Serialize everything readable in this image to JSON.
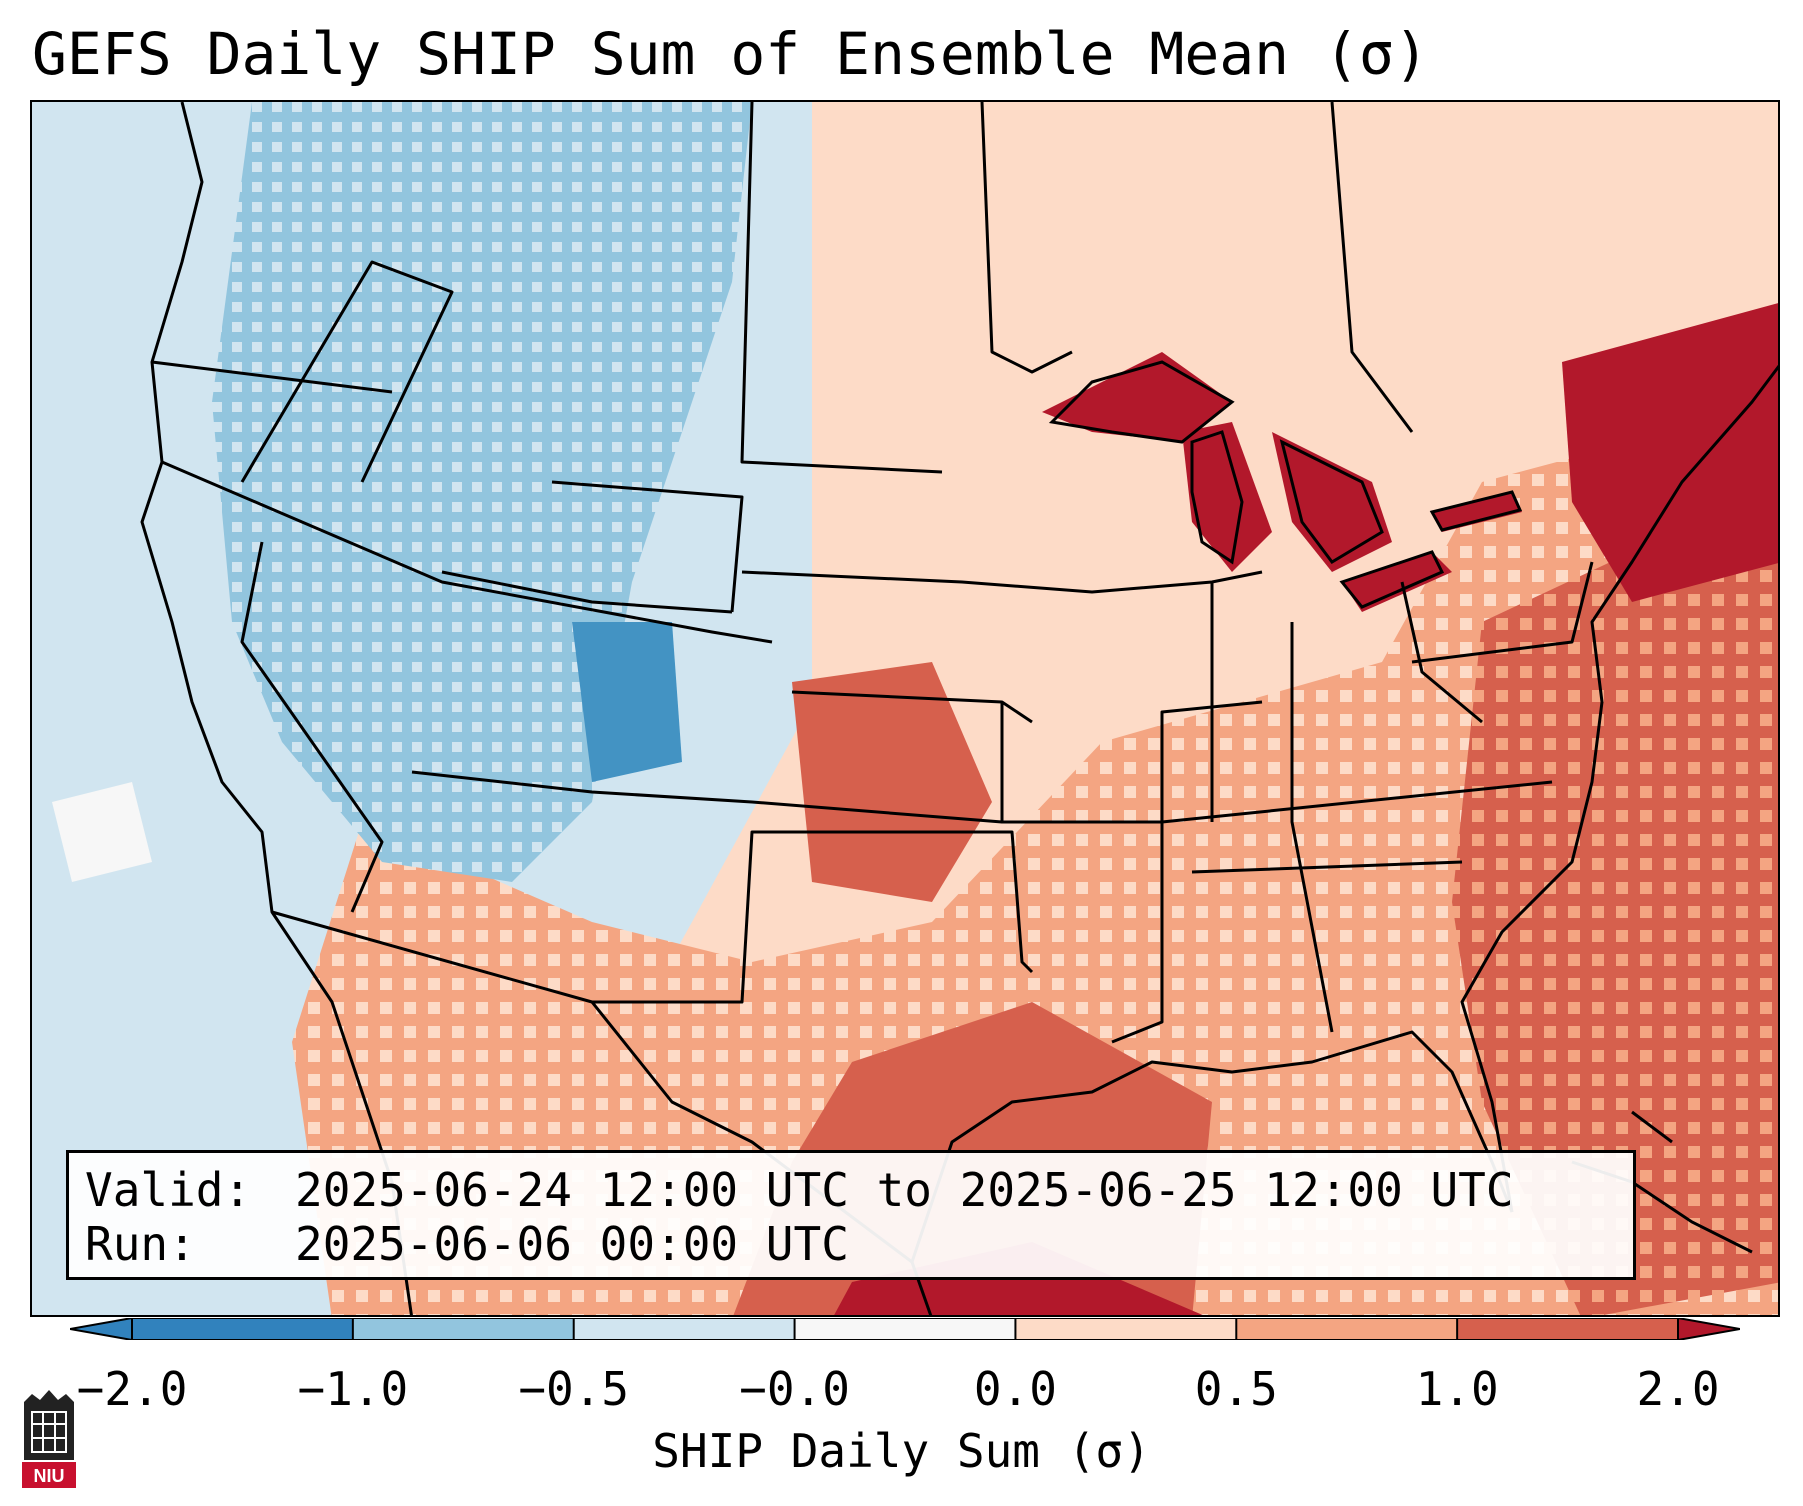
{
  "title": "GEFS Daily SHIP Sum of Ensemble Mean (σ)",
  "info": {
    "valid_label": "Valid:",
    "valid_value": "2025-06-24 12:00 UTC to 2025-06-25 12:00 UTC",
    "run_label": "Run:",
    "run_value": "2025-06-06 00:00 UTC"
  },
  "colorbar": {
    "label": "SHIP Daily Sum (σ)",
    "ticks": [
      "−2.0",
      "−1.0",
      "−0.5",
      "−0.0",
      "0.0",
      "0.5",
      "1.0",
      "2.0"
    ],
    "colors": [
      "#3182bd",
      "#92c5de",
      "#d1e5f0",
      "#f7f7f7",
      "#fddbc7",
      "#f4a582",
      "#d6604d",
      "#b2182b"
    ]
  },
  "logo": {
    "text": "NIU",
    "color": "#c8102e"
  },
  "map": {
    "region": "Contiguous United States",
    "features": [
      "state-borders",
      "coastlines",
      "great-lakes"
    ]
  }
}
